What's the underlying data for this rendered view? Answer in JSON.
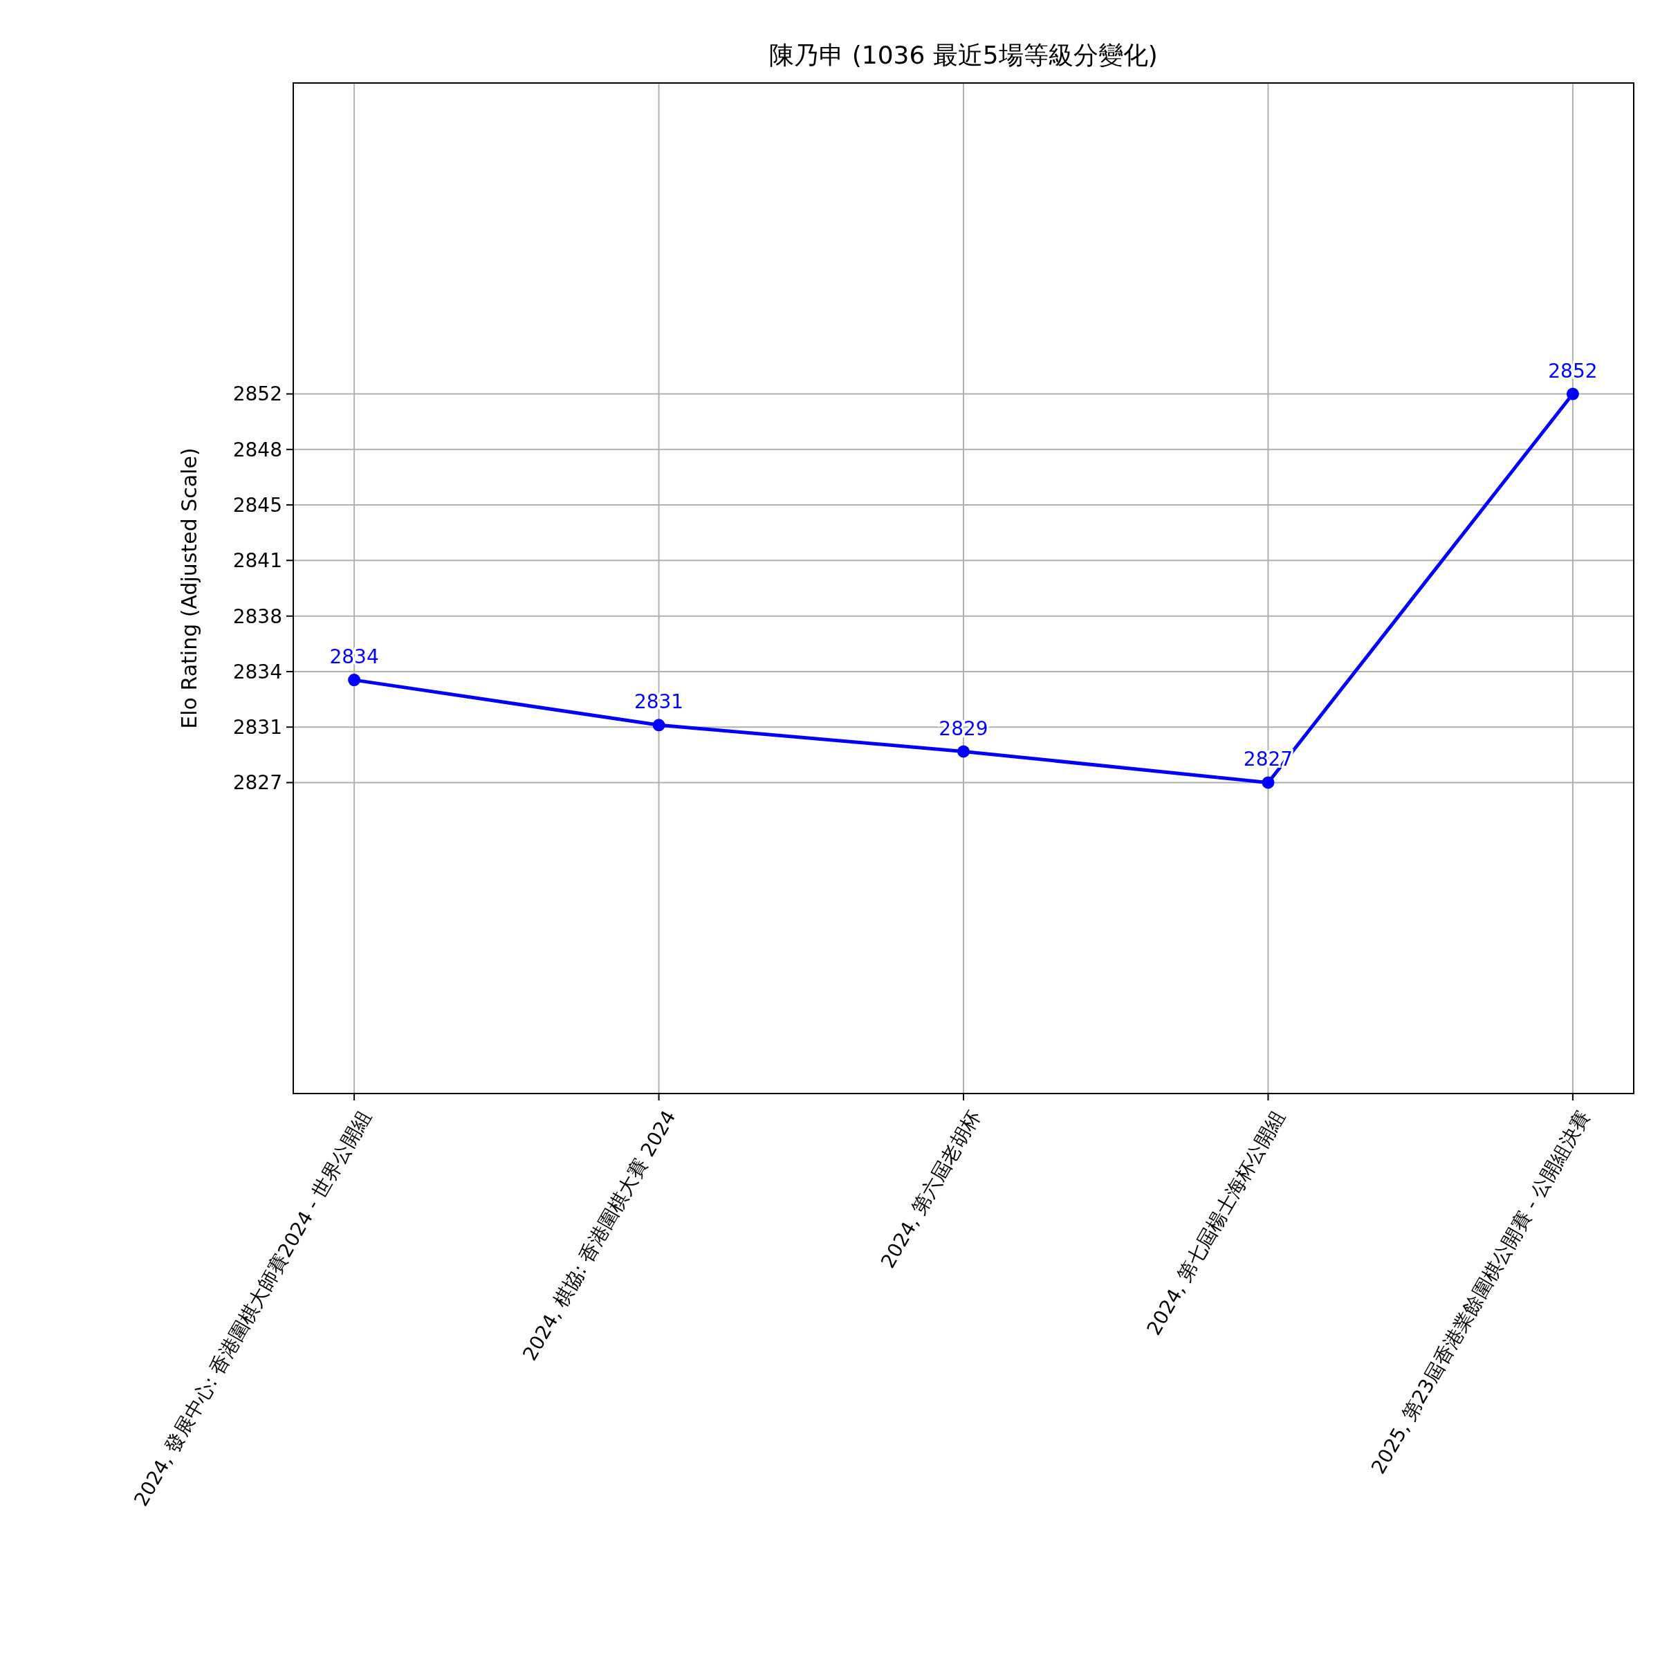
{
  "chart_data": {
    "type": "line",
    "title": "陳乃申 (1036 最近5場等級分變化)",
    "ylabel": "Elo Rating (Adjusted Scale)",
    "categories": [
      "2024, 發展中心: 香港圍棋大師賽2024 - 世界公開組",
      "2024, 棋協: 香港圍棋大賽 2024",
      "2024, 第六屆老胡杯",
      "2024, 第七屆楊士海杯公開組",
      "2025, 第23屆香港業餘圍棋公開賽 - 公開組決賽"
    ],
    "series": [
      {
        "color": "#0000ff",
        "values": [
          2833.6,
          2830.7,
          2829.0,
          2827,
          2852
        ],
        "value_labels": [
          "2834",
          "2831",
          "2829",
          "2827",
          "2852"
        ]
      }
    ],
    "ylim": [
      2807,
      2872
    ],
    "yticks": [
      2827,
      {
        "value": 2830.57,
        "label": "2831"
      },
      {
        "value": 2834.14,
        "label": "2834"
      },
      {
        "value": 2837.71,
        "label": "2838"
      },
      {
        "value": 2841.29,
        "label": "2841"
      },
      {
        "value": 2844.86,
        "label": "2845"
      },
      {
        "value": 2848.43,
        "label": "2848"
      },
      2852
    ],
    "grid": true,
    "marker": "circle",
    "line_style": "solid"
  }
}
